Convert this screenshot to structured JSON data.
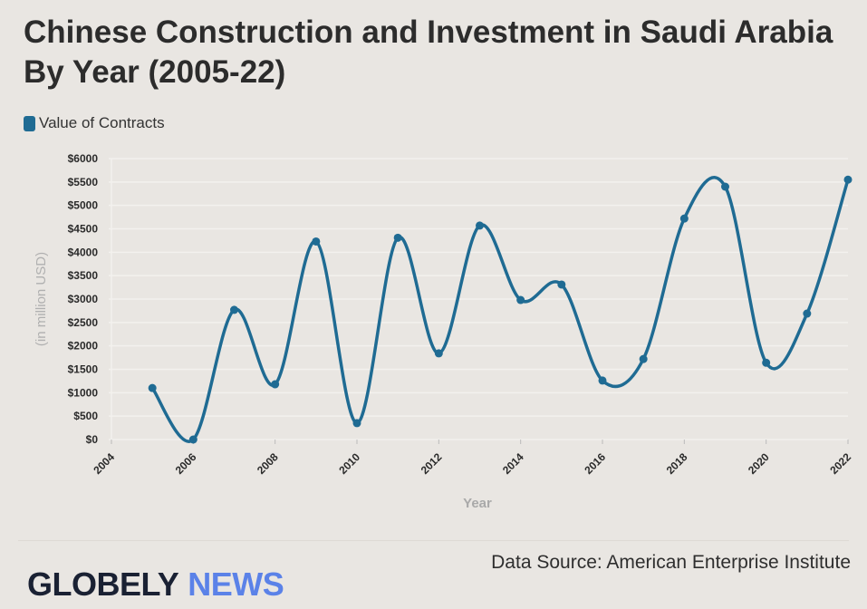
{
  "title": "Chinese Construction and Investment in Saudi Arabia By Year (2005-22)",
  "source": "Data Source: American Enterprise Institute",
  "logo": {
    "part1": "GLOBELY",
    "part2": "NEWS",
    "colors": {
      "part1": "#1a2133",
      "part2": "#5b82e8"
    }
  },
  "chart_data": {
    "type": "line",
    "smooth": true,
    "title": "Chinese Construction and Investment in Saudi Arabia By Year (2005-22)",
    "xlabel": "Year",
    "ylabel": "(in million USD)",
    "xlim": [
      2004,
      2022
    ],
    "ylim": [
      0,
      6000
    ],
    "x_ticks": [
      "2004",
      "2006",
      "2008",
      "2010",
      "2012",
      "2014",
      "2016",
      "2018",
      "2020",
      "2022"
    ],
    "y_ticks": [
      "$0",
      "$500",
      "$1000",
      "$1500",
      "$2000",
      "$2500",
      "$3000",
      "$3500",
      "$4000",
      "$4500",
      "$5000",
      "$5500",
      "$6000"
    ],
    "grid": true,
    "legend": "top-left",
    "series": [
      {
        "name": "Value of Contracts",
        "color": "#1f6b93",
        "x": [
          2005,
          2006,
          2007,
          2008,
          2009,
          2010,
          2011,
          2012,
          2013,
          2014,
          2015,
          2016,
          2017,
          2018,
          2019,
          2020,
          2021,
          2022
        ],
        "values": [
          1100,
          0,
          2770,
          1180,
          4230,
          350,
          4310,
          1840,
          4570,
          2980,
          3310,
          1260,
          1720,
          4720,
          5400,
          1640,
          2690,
          5550
        ]
      }
    ]
  }
}
